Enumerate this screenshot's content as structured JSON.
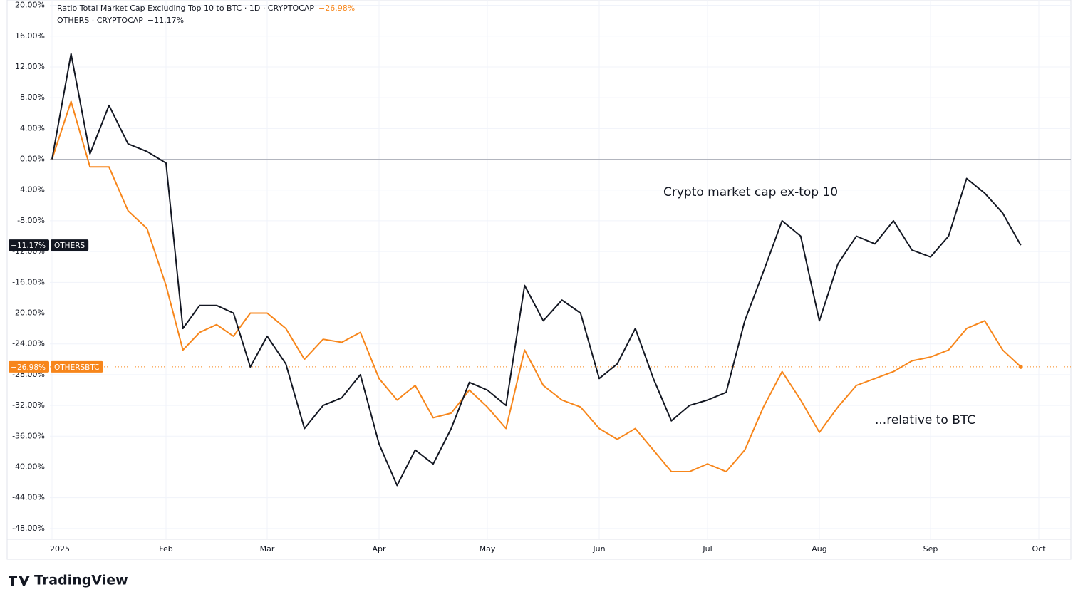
{
  "chart_data": {
    "type": "line",
    "annotations": [
      "Crypto market cap ex-top 10",
      "...relative to BTC"
    ],
    "brand": "TradingView",
    "categories": [
      "2025",
      null,
      null,
      null,
      null,
      null,
      "Feb",
      null,
      null,
      null,
      null,
      null,
      "Mar",
      null,
      null,
      null,
      null,
      null,
      "Apr",
      null,
      null,
      null,
      null,
      null,
      "May",
      null,
      null,
      null,
      null,
      null,
      "Jun",
      null,
      null,
      null,
      null,
      null,
      "Jul",
      null,
      null,
      null,
      null,
      null,
      "Aug",
      null,
      null,
      null,
      null,
      null,
      "Sep",
      null,
      null,
      null,
      null,
      null,
      "Oct"
    ],
    "series": [
      {
        "name": "Ratio Total Market Cap Excluding Top 10 to BTC · 1D · CRYPTOCAP",
        "symbol": "OTHERSBTC",
        "last_label": "−26.98%",
        "color": "#f7861b",
        "values": [
          0,
          7.5,
          -1,
          -1,
          -6.7,
          -9,
          -16.4,
          -24.8,
          -22.5,
          -21.5,
          -23,
          -20,
          -20,
          -22,
          -26,
          -23.4,
          -23.8,
          -22.5,
          -28.5,
          -31.3,
          -29.4,
          -33.6,
          -33,
          -30,
          -32.2,
          -35,
          -24.8,
          -29.4,
          -31.3,
          -32.2,
          -35,
          -36.4,
          -35,
          -37.8,
          -40.6,
          -40.6,
          -39.6,
          -40.6,
          -37.8,
          -32.2,
          -27.6,
          -31.3,
          -35.5,
          -32.2,
          -29.4,
          -28.5,
          -27.6,
          -26.2,
          -25.7,
          -24.8,
          -22,
          -21,
          -24.8,
          -26.98,
          null
        ]
      },
      {
        "name": "OTHERS · CRYPTOCAP",
        "symbol": "OTHERS",
        "last_label": "−11.17%",
        "color": "#131722",
        "values": [
          0,
          13.7,
          0.7,
          7,
          2,
          1,
          -0.5,
          -22,
          -19,
          -19,
          -20,
          -27,
          -23,
          -26.6,
          -35,
          -32,
          -31,
          -28,
          -37,
          -42.4,
          -37.8,
          -39.6,
          -35,
          -29,
          -30,
          -32,
          -16.4,
          -21,
          -18.3,
          -20,
          -28.5,
          -26.6,
          -22,
          -28.5,
          -34,
          -32,
          -31.3,
          -30.3,
          -21,
          -14.6,
          -8,
          -10,
          -21,
          -13.6,
          -10,
          -11,
          -8,
          -11.8,
          -12.7,
          -10,
          -2.5,
          -4.4,
          -7,
          -11.17,
          null
        ]
      }
    ],
    "ylim": [
      -49.4,
      20.7
    ],
    "yticks": [
      {
        "value": 20,
        "label": "20.00%"
      },
      {
        "value": 16,
        "label": "16.00%"
      },
      {
        "value": 12,
        "label": "12.00%"
      },
      {
        "value": 8,
        "label": "8.00%"
      },
      {
        "value": 4,
        "label": "4.00%"
      },
      {
        "value": 0,
        "label": "0.00%"
      },
      {
        "value": -4,
        "label": "-4.00%"
      },
      {
        "value": -8,
        "label": "-8.00%"
      },
      {
        "value": -12,
        "label": "-12.00%"
      },
      {
        "value": -16,
        "label": "-16.00%"
      },
      {
        "value": -20,
        "label": "-20.00%"
      },
      {
        "value": -24,
        "label": "-24.00%"
      },
      {
        "value": -28,
        "label": "-28.00%"
      },
      {
        "value": -32,
        "label": "-32.00%"
      },
      {
        "value": -36,
        "label": "-36.00%"
      },
      {
        "value": -40,
        "label": "-40.00%"
      },
      {
        "value": -44,
        "label": "-44.00%"
      },
      {
        "value": -48,
        "label": "-48.00%"
      }
    ],
    "grid": true
  }
}
